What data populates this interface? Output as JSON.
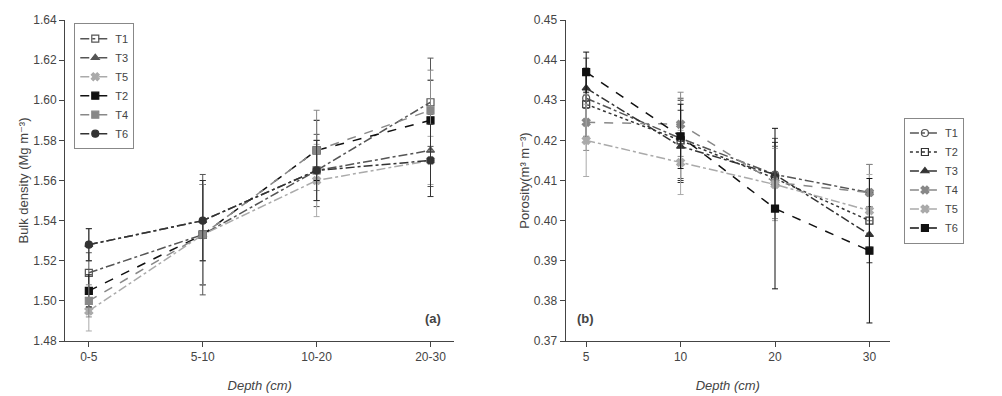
{
  "chart_data": [
    {
      "type": "line",
      "annotation": "(a)",
      "xlabel": "Depth (cm)",
      "ylabel": "Bulk density (Mg m⁻³)",
      "categories": [
        "0-5",
        "5-10",
        "10-20",
        "20-30"
      ],
      "ylim": [
        1.48,
        1.64
      ],
      "yticks": [
        1.48,
        {
          "value": 1.5,
          "label": "1.50"
        },
        1.52,
        1.54,
        1.56,
        1.58,
        {
          "value": 1.6,
          "label": "1.60"
        },
        1.62,
        1.64
      ],
      "grid": false,
      "legend": "upper left",
      "series": [
        {
          "name": "T1",
          "color": "#555555",
          "marker": "square-open",
          "line_style": "dashdot",
          "values": [
            1.514,
            1.533,
            1.565,
            1.599
          ],
          "errors": [
            0.01,
            0.03,
            0.018,
            0.022
          ]
        },
        {
          "name": "T3",
          "color": "#555555",
          "marker": "triangle-up",
          "line_style": "dashdot",
          "values": [
            1.528,
            1.54,
            1.565,
            1.575
          ],
          "errors": [
            0.008,
            0.02,
            0.015,
            0.018
          ]
        },
        {
          "name": "T5",
          "color": "#aaaaaa",
          "marker": "x",
          "line_style": "dashdot",
          "values": [
            1.495,
            1.533,
            1.56,
            1.57
          ],
          "errors": [
            0.01,
            0.025,
            0.018,
            0.012
          ]
        },
        {
          "name": "T2",
          "color": "#111111",
          "marker": "square",
          "line_style": "dash",
          "values": [
            1.505,
            1.533,
            1.575,
            1.59
          ],
          "errors": [
            0.008,
            0.025,
            0.015,
            0.02
          ]
        },
        {
          "name": "T4",
          "color": "#888888",
          "marker": "square",
          "line_style": "dash",
          "values": [
            1.5,
            1.533,
            1.575,
            1.595
          ],
          "errors": [
            0.008,
            0.025,
            0.02,
            0.02
          ]
        },
        {
          "name": "T6",
          "color": "#333333",
          "marker": "circle",
          "line_style": "dashdot",
          "values": [
            1.528,
            1.54,
            1.565,
            1.57
          ],
          "errors": [
            0.008,
            0.02,
            0.015,
            0.018
          ]
        }
      ]
    },
    {
      "type": "line",
      "annotation": "(b)",
      "xlabel": "Depth (cm)",
      "ylabel": "Porosity(m³ m⁻³)",
      "categories": [
        "5",
        "10",
        "20",
        "30"
      ],
      "ylim": [
        0.37,
        0.45
      ],
      "yticks": [
        0.37,
        0.38,
        0.39,
        {
          "value": 0.4,
          "label": "0.40"
        },
        0.41,
        0.42,
        0.43,
        0.44,
        0.45
      ],
      "grid": false,
      "legend": "right",
      "series": [
        {
          "name": "T1",
          "color": "#555555",
          "marker": "circle-open",
          "line_style": "dashdot",
          "values": [
            0.4305,
            0.4205,
            0.4115,
            0.407
          ],
          "errors": [
            0.01,
            0.01,
            0.009,
            0.007
          ]
        },
        {
          "name": "T2",
          "color": "#333333",
          "marker": "square-open",
          "line_style": "dot",
          "values": [
            0.429,
            0.42,
            0.4105,
            0.4
          ],
          "errors": [
            0.008,
            0.01,
            0.008,
            0.007
          ]
        },
        {
          "name": "T3",
          "color": "#333333",
          "marker": "triangle-up",
          "line_style": "dashdot",
          "values": [
            0.433,
            0.4185,
            0.4115,
            0.3965
          ],
          "errors": [
            0.005,
            0.009,
            0.008,
            0.007
          ]
        },
        {
          "name": "T4",
          "color": "#888888",
          "marker": "x",
          "line_style": "dash",
          "values": [
            0.4245,
            0.424,
            0.4095,
            0.407
          ],
          "errors": [
            0.007,
            0.008,
            0.009,
            0.007
          ]
        },
        {
          "name": "T5",
          "color": "#aaaaaa",
          "marker": "x",
          "line_style": "dashdot",
          "values": [
            0.42,
            0.4145,
            0.409,
            0.4025
          ],
          "errors": [
            0.009,
            0.008,
            0.009,
            0.009
          ]
        },
        {
          "name": "T6",
          "color": "#111111",
          "marker": "square",
          "line_style": "dash",
          "values": [
            0.437,
            0.421,
            0.403,
            0.3925
          ],
          "errors": [
            0.005,
            0.008,
            0.02,
            0.018
          ]
        }
      ]
    }
  ]
}
